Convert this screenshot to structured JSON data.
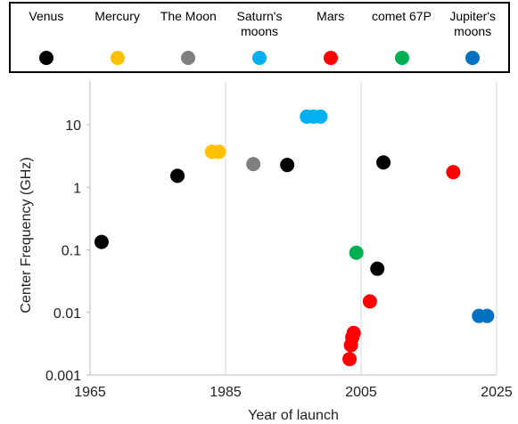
{
  "chart_data": {
    "type": "scatter",
    "x_label": "Year of launch",
    "y_label": "Center Frequency (GHz)",
    "xlim": [
      1965,
      2025
    ],
    "xticks": [
      1965,
      1985,
      2005,
      2025
    ],
    "ylim": [
      0.001,
      50
    ],
    "yticks": [
      10,
      1,
      0.1,
      0.01,
      0.001
    ],
    "y_log": true,
    "grid": "x",
    "series": [
      {
        "name": "Venus",
        "color": "#000000",
        "x": [
          1966.7,
          1977.9,
          1994.1,
          2008.3,
          2007.4
        ],
        "values": [
          0.134,
          1.53,
          2.28,
          2.5,
          0.05
        ]
      },
      {
        "name": "Mercury",
        "color": "#ffc000",
        "x": [
          1983,
          1984
        ],
        "values": [
          3.7,
          3.7
        ]
      },
      {
        "name": "The Moon",
        "color": "#7f7f7f",
        "x": [
          1989.1
        ],
        "values": [
          2.35
        ]
      },
      {
        "name": "Saturn's moons",
        "color": "#00b0f0",
        "x": [
          1997,
          1998,
          1999
        ],
        "values": [
          13.5,
          13.5,
          13.5
        ]
      },
      {
        "name": "Mars",
        "color": "#ff0000",
        "x": [
          2018.6,
          2006.3,
          2003.9,
          2003.7,
          2003.5,
          2003.3
        ],
        "values": [
          1.75,
          0.015,
          0.0047,
          0.004,
          0.003,
          0.0018
        ]
      },
      {
        "name": "comet 67P",
        "color": "#00b050",
        "x": [
          2004.3
        ],
        "values": [
          0.09
        ]
      },
      {
        "name": "Jupiter's moons",
        "color": "#0070c0",
        "x": [
          2022.4,
          2023.6
        ],
        "values": [
          0.0088,
          0.0088
        ]
      }
    ]
  }
}
